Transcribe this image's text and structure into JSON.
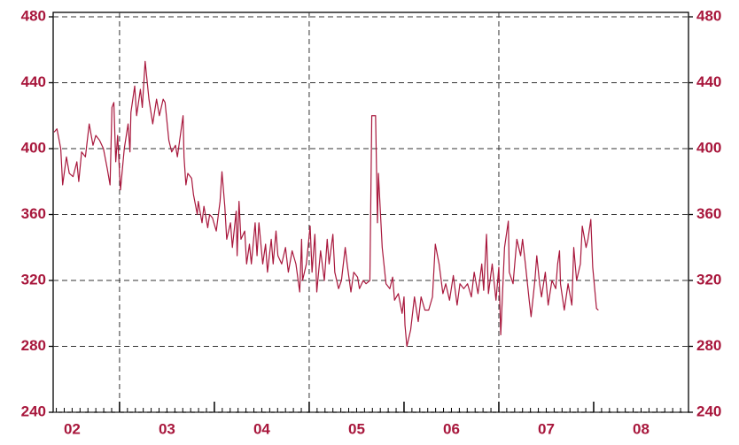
{
  "chart_data": {
    "type": "line",
    "color": "#a8173c",
    "xlim": [
      2002.3,
      2009.0
    ],
    "ylim": [
      240,
      480
    ],
    "y2lim": [
      240,
      480
    ],
    "yticks": [
      240,
      280,
      320,
      360,
      400,
      440,
      480
    ],
    "y2ticks": [
      240,
      280,
      320,
      360,
      400,
      440,
      480
    ],
    "xticks": [
      {
        "value": 2002.5,
        "label": "02"
      },
      {
        "value": 2003.5,
        "label": "03"
      },
      {
        "value": 2004.5,
        "label": "04"
      },
      {
        "value": 2005.5,
        "label": "05"
      },
      {
        "value": 2006.5,
        "label": "06"
      },
      {
        "value": 2007.5,
        "label": "07"
      },
      {
        "value": 2008.5,
        "label": "08"
      }
    ],
    "xmajor": [
      2003,
      2004,
      2005,
      2006,
      2007,
      2008
    ],
    "vlines": [
      2003,
      2005,
      2007
    ],
    "grid": true,
    "x": [
      2002.31,
      2002.34,
      2002.38,
      2002.4,
      2002.44,
      2002.47,
      2002.51,
      2002.55,
      2002.57,
      2002.6,
      2002.64,
      2002.68,
      2002.72,
      2002.75,
      2002.79,
      2002.83,
      2002.87,
      2002.9,
      2002.92,
      2002.94,
      2002.96,
      2002.98,
      2003.0,
      2003.01,
      2003.05,
      2003.09,
      2003.11,
      2003.12,
      2003.16,
      2003.18,
      2003.22,
      2003.24,
      2003.27,
      2003.31,
      2003.35,
      2003.39,
      2003.42,
      2003.46,
      2003.48,
      2003.52,
      2003.55,
      2003.59,
      2003.61,
      2003.67,
      2003.68,
      2003.7,
      2003.72,
      2003.76,
      2003.78,
      2003.82,
      2003.83,
      2003.87,
      2003.89,
      2003.93,
      2003.95,
      2003.98,
      2004.02,
      2004.06,
      2004.08,
      2004.11,
      2004.13,
      2004.17,
      2004.19,
      2004.23,
      2004.24,
      2004.26,
      2004.28,
      2004.32,
      2004.34,
      2004.37,
      2004.39,
      2004.43,
      2004.45,
      2004.47,
      2004.51,
      2004.54,
      2004.56,
      2004.6,
      2004.62,
      2004.65,
      2004.67,
      2004.71,
      2004.75,
      2004.78,
      2004.82,
      2004.86,
      2004.9,
      2004.92,
      2004.93,
      2004.97,
      2005.01,
      2005.03,
      2005.06,
      2005.08,
      2005.12,
      2005.16,
      2005.19,
      2005.21,
      2005.25,
      2005.27,
      2005.31,
      2005.34,
      2005.38,
      2005.4,
      2005.44,
      2005.47,
      2005.51,
      2005.53,
      2005.57,
      2005.6,
      2005.64,
      2005.66,
      2005.7,
      2005.72,
      2005.73,
      2005.77,
      2005.81,
      2005.85,
      2005.88,
      2005.9,
      2005.94,
      2005.98,
      2006.0,
      2006.01,
      2006.03,
      2006.07,
      2006.11,
      2006.15,
      2006.18,
      2006.22,
      2006.26,
      2006.3,
      2006.33,
      2006.37,
      2006.41,
      2006.44,
      2006.48,
      2006.52,
      2006.56,
      2006.59,
      2006.63,
      2006.67,
      2006.71,
      2006.74,
      2006.78,
      2006.82,
      2006.84,
      2006.87,
      2006.89,
      2006.93,
      2006.97,
      2007.0,
      2007.02,
      2007.06,
      2007.1,
      2007.11,
      2007.15,
      2007.19,
      2007.23,
      2007.25,
      2007.28,
      2007.32,
      2007.34,
      2007.38,
      2007.4,
      2007.43,
      2007.45,
      2007.49,
      2007.52,
      2007.56,
      2007.6,
      2007.62,
      2007.64,
      2007.65,
      2007.69,
      2007.73,
      2007.77,
      2007.79,
      2007.82,
      2007.86,
      2007.88,
      2007.92,
      2007.94,
      2007.97,
      2007.99,
      2008.03,
      2008.05
    ],
    "values": [
      410,
      412,
      400,
      378,
      395,
      385,
      383,
      392,
      380,
      398,
      395,
      415,
      402,
      408,
      405,
      400,
      388,
      378,
      425,
      428,
      392,
      408,
      385,
      375,
      400,
      415,
      398,
      422,
      438,
      420,
      436,
      425,
      453,
      430,
      415,
      430,
      420,
      430,
      428,
      405,
      398,
      402,
      395,
      420,
      395,
      378,
      385,
      382,
      372,
      360,
      368,
      355,
      365,
      352,
      360,
      358,
      350,
      368,
      386,
      365,
      345,
      355,
      340,
      362,
      335,
      368,
      345,
      350,
      330,
      342,
      330,
      355,
      335,
      355,
      330,
      342,
      325,
      345,
      330,
      350,
      335,
      330,
      340,
      325,
      338,
      330,
      313,
      345,
      320,
      330,
      353,
      325,
      348,
      313,
      338,
      320,
      345,
      330,
      348,
      325,
      315,
      320,
      340,
      330,
      313,
      325,
      322,
      315,
      320,
      318,
      320,
      420,
      420,
      355,
      385,
      340,
      318,
      315,
      322,
      308,
      312,
      300,
      310,
      293,
      280,
      290,
      310,
      295,
      310,
      302,
      302,
      310,
      342,
      330,
      312,
      318,
      308,
      323,
      305,
      318,
      315,
      318,
      310,
      325,
      312,
      330,
      314,
      348,
      312,
      330,
      308,
      328,
      287,
      340,
      356,
      325,
      318,
      345,
      335,
      345,
      330,
      308,
      298,
      320,
      335,
      318,
      310,
      325,
      305,
      320,
      315,
      330,
      338,
      318,
      302,
      318,
      305,
      340,
      320,
      330,
      353,
      340,
      345,
      357,
      328,
      303,
      302
    ]
  }
}
